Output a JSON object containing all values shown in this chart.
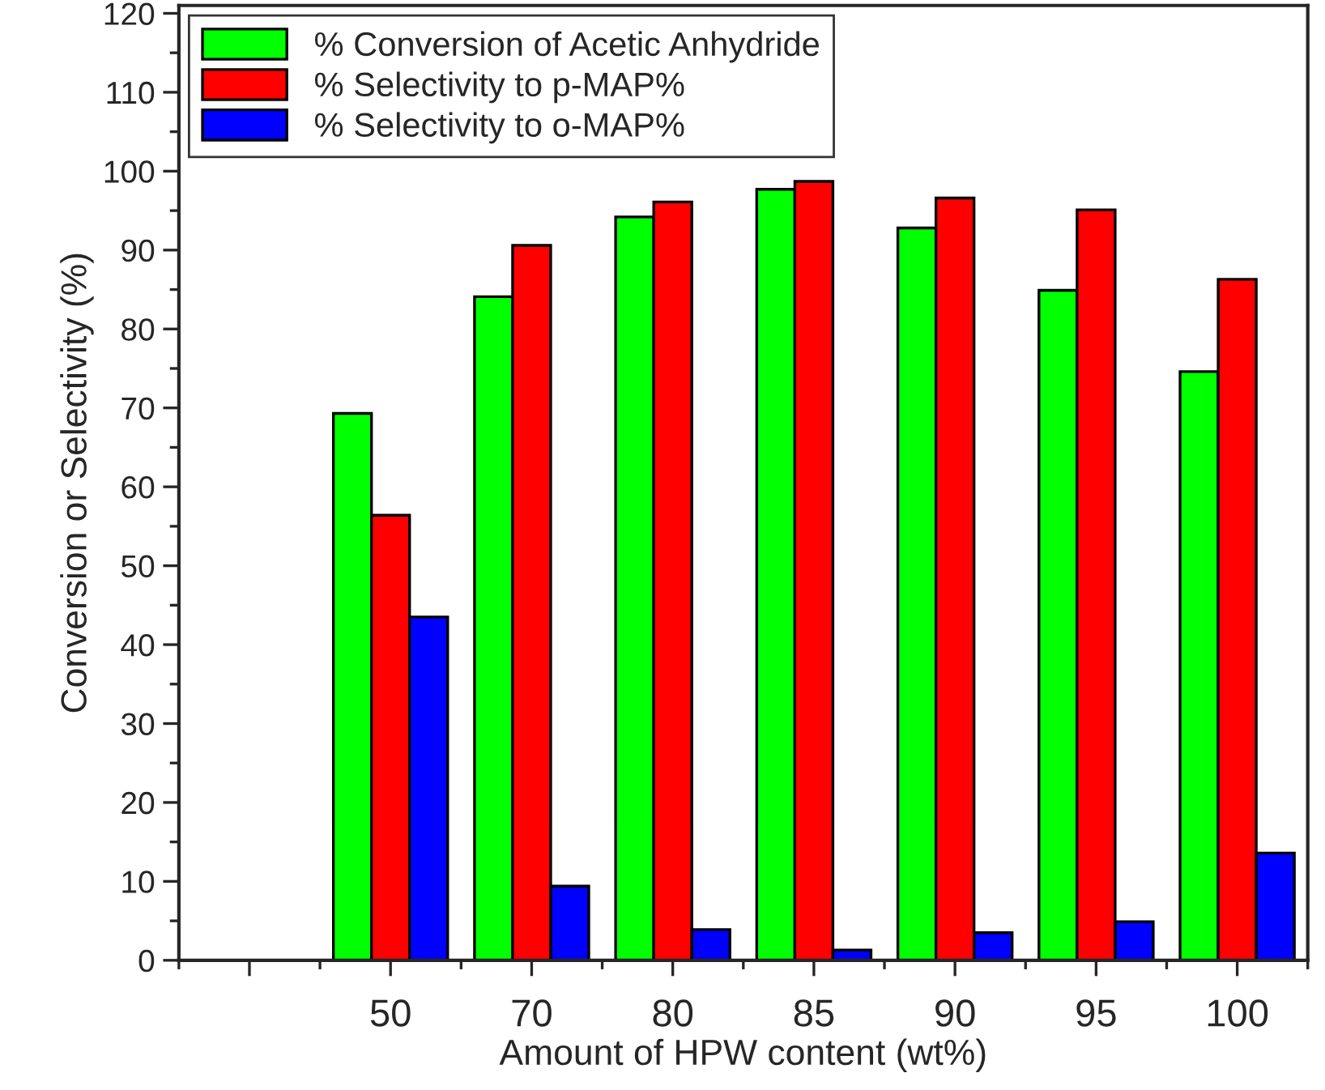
{
  "chart_data": {
    "type": "bar",
    "xlabel": "Amount of HPW content (wt%)",
    "ylabel": "Conversion or Selectivity (%)",
    "categories": [
      null,
      "50",
      "70",
      "80",
      "85",
      "90",
      "95",
      "100"
    ],
    "series": [
      {
        "name": "% Conversion of Acetic Anhydride",
        "color": "#00ff00",
        "values": [
          null,
          69.3,
          84.1,
          94.2,
          97.7,
          92.8,
          84.9,
          74.6
        ]
      },
      {
        "name": "% Selectivity to p-MAP%",
        "color": "#ff0000",
        "values": [
          null,
          56.4,
          90.6,
          96.1,
          98.7,
          96.6,
          95.1,
          86.3
        ]
      },
      {
        "name": "% Selectivity to o-MAP%",
        "color": "#0000ff",
        "values": [
          null,
          43.5,
          9.4,
          3.9,
          1.3,
          3.5,
          4.9,
          13.6
        ]
      }
    ],
    "ylim": [
      0,
      121
    ],
    "yticks": [
      0,
      10,
      20,
      30,
      40,
      50,
      60,
      70,
      80,
      90,
      100,
      110,
      120
    ],
    "grid": false,
    "legend": "top left"
  }
}
